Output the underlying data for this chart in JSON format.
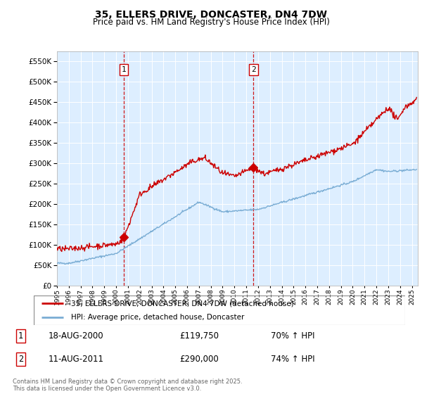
{
  "title": "35, ELLERS DRIVE, DONCASTER, DN4 7DW",
  "subtitle": "Price paid vs. HM Land Registry's House Price Index (HPI)",
  "ytick_values": [
    0,
    50000,
    100000,
    150000,
    200000,
    250000,
    300000,
    350000,
    400000,
    450000,
    500000,
    550000
  ],
  "ylim": [
    0,
    575000
  ],
  "xlim_start": 1995.0,
  "xlim_end": 2025.5,
  "xticks": [
    1995,
    1996,
    1997,
    1998,
    1999,
    2000,
    2001,
    2002,
    2003,
    2004,
    2005,
    2006,
    2007,
    2008,
    2009,
    2010,
    2011,
    2012,
    2013,
    2014,
    2015,
    2016,
    2017,
    2018,
    2019,
    2020,
    2021,
    2022,
    2023,
    2024,
    2025
  ],
  "plot_bg": "#ddeeff",
  "red_color": "#cc0000",
  "blue_color": "#7aadd4",
  "sale1_x": 2000.63,
  "sale1_y": 119750,
  "sale1_label": "1",
  "sale1_date": "18-AUG-2000",
  "sale1_price": "£119,750",
  "sale1_hpi": "70% ↑ HPI",
  "sale2_x": 2011.61,
  "sale2_y": 290000,
  "sale2_label": "2",
  "sale2_date": "11-AUG-2011",
  "sale2_price": "£290,000",
  "sale2_hpi": "74% ↑ HPI",
  "legend_line1": "35, ELLERS DRIVE, DONCASTER, DN4 7DW (detached house)",
  "legend_line2": "HPI: Average price, detached house, Doncaster",
  "footer": "Contains HM Land Registry data © Crown copyright and database right 2025.\nThis data is licensed under the Open Government Licence v3.0."
}
